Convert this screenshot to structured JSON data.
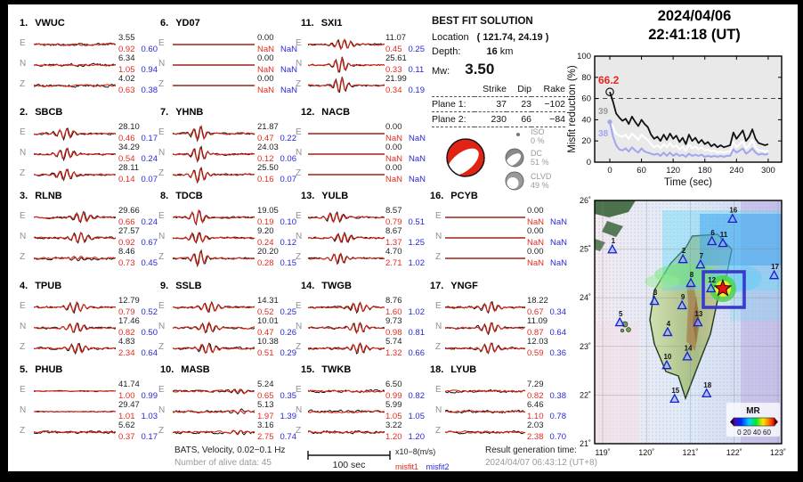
{
  "header": {
    "date": "2024/04/06",
    "time": "22:41:18  (UT)"
  },
  "solution": {
    "title": "BEST FIT SOLUTION",
    "location_label": "Location",
    "location_value": "( 121.74,  24.19 )",
    "depth_label": "Depth:",
    "depth_value": "16",
    "depth_unit": "km",
    "mw_label": "Mw:",
    "mw_value": "3.50",
    "col_headers": [
      "Strike",
      "Dip",
      "Rake"
    ],
    "planes": [
      {
        "label": "Plane 1:",
        "strike": "37",
        "dip": "23",
        "rake": "−102"
      },
      {
        "label": "Plane 2:",
        "strike": "230",
        "dip": "66",
        "rake": "−84"
      }
    ],
    "decomposition": [
      {
        "name": "ISO",
        "pct": "0 %"
      },
      {
        "name": "DC",
        "pct": "51 %"
      },
      {
        "name": "CLVD",
        "pct": "49 %"
      }
    ]
  },
  "stations": [
    {
      "num": "1.",
      "name": "VWUC",
      "traces": [
        {
          "c": "E",
          "amp": "3.55",
          "m1": "0.92",
          "m2": "0.60",
          "w": "n"
        },
        {
          "c": "N",
          "amp": "6.34",
          "m1": "1.05",
          "m2": "0.94",
          "w": "n"
        },
        {
          "c": "Z",
          "amp": "4.02",
          "m1": "0.63",
          "m2": "0.38",
          "w": "n"
        }
      ]
    },
    {
      "num": "2.",
      "name": "SBCB",
      "traces": [
        {
          "c": "E",
          "amp": "28.10",
          "m1": "0.46",
          "m2": "0.17",
          "w": "b",
          "p": 0.38
        },
        {
          "c": "N",
          "amp": "34.29",
          "m1": "0.54",
          "m2": "0.24",
          "w": "b",
          "p": 0.38
        },
        {
          "c": "Z",
          "amp": "28.11",
          "m1": "0.14",
          "m2": "0.07",
          "w": "b",
          "p": 0.38
        }
      ]
    },
    {
      "num": "3.",
      "name": "RLNB",
      "traces": [
        {
          "c": "E",
          "amp": "29.66",
          "m1": "0.66",
          "m2": "0.24",
          "w": "b",
          "p": 0.58
        },
        {
          "c": "N",
          "amp": "27.57",
          "m1": "0.92",
          "m2": "0.67",
          "w": "b",
          "p": 0.55
        },
        {
          "c": "Z",
          "amp": "8.46",
          "m1": "0.73",
          "m2": "0.45",
          "w": "n",
          "p": 0.55
        }
      ]
    },
    {
      "num": "4.",
      "name": "TPUB",
      "traces": [
        {
          "c": "E",
          "amp": "12.79",
          "m1": "0.79",
          "m2": "0.52",
          "w": "b",
          "p": 0.5
        },
        {
          "c": "N",
          "amp": "17.46",
          "m1": "0.82",
          "m2": "0.50",
          "w": "b",
          "p": 0.5
        },
        {
          "c": "Z",
          "amp": "4.83",
          "m1": "2.34",
          "m2": "0.64",
          "w": "b",
          "p": 0.52
        }
      ]
    },
    {
      "num": "5.",
      "name": "PHUB",
      "traces": [
        {
          "c": "E",
          "amp": "41.74",
          "m1": "1.00",
          "m2": "0.99",
          "w": "f"
        },
        {
          "c": "N",
          "amp": "29.47",
          "m1": "1.01",
          "m2": "1.03",
          "w": "f"
        },
        {
          "c": "Z",
          "amp": "5.62",
          "m1": "0.37",
          "m2": "0.17",
          "w": "n"
        }
      ]
    },
    {
      "num": "6.",
      "name": "YD07",
      "traces": [
        {
          "c": "E",
          "amp": "0.00",
          "m1": "NaN",
          "m2": "NaN",
          "w": "d"
        },
        {
          "c": "N",
          "amp": "0.00",
          "m1": "NaN",
          "m2": "NaN",
          "w": "d"
        },
        {
          "c": "Z",
          "amp": "0.00",
          "m1": "NaN",
          "m2": "NaN",
          "w": "d"
        }
      ]
    },
    {
      "num": "7.",
      "name": "YHNB",
      "traces": [
        {
          "c": "E",
          "amp": "21.87",
          "m1": "0.47",
          "m2": "0.22",
          "w": "B",
          "p": 0.32
        },
        {
          "c": "N",
          "amp": "24.03",
          "m1": "0.12",
          "m2": "0.06",
          "w": "B",
          "p": 0.32
        },
        {
          "c": "Z",
          "amp": "25.50",
          "m1": "0.16",
          "m2": "0.07",
          "w": "B",
          "p": 0.32
        }
      ]
    },
    {
      "num": "8.",
      "name": "TDCB",
      "traces": [
        {
          "c": "E",
          "amp": "19.05",
          "m1": "0.19",
          "m2": "0.10",
          "w": "B",
          "p": 0.3
        },
        {
          "c": "N",
          "amp": "9.20",
          "m1": "0.24",
          "m2": "0.12",
          "w": "b",
          "p": 0.3
        },
        {
          "c": "Z",
          "amp": "20.20",
          "m1": "0.28",
          "m2": "0.15",
          "w": "B",
          "p": 0.32
        }
      ]
    },
    {
      "num": "9.",
      "name": "SSLB",
      "traces": [
        {
          "c": "E",
          "amp": "14.31",
          "m1": "0.52",
          "m2": "0.25",
          "w": "b",
          "p": 0.45
        },
        {
          "c": "N",
          "amp": "10.01",
          "m1": "0.47",
          "m2": "0.26",
          "w": "b",
          "p": 0.42
        },
        {
          "c": "Z",
          "amp": "10.38",
          "m1": "0.51",
          "m2": "0.29",
          "w": "b",
          "p": 0.42
        }
      ]
    },
    {
      "num": "10.",
      "name": "MASB",
      "traces": [
        {
          "c": "E",
          "amp": "5.24",
          "m1": "0.65",
          "m2": "0.35",
          "w": "n",
          "p": 0.8
        },
        {
          "c": "N",
          "amp": "5.13",
          "m1": "1.97",
          "m2": "1.39",
          "w": "n",
          "p": 0.8
        },
        {
          "c": "Z",
          "amp": "3.16",
          "m1": "2.75",
          "m2": "0.74",
          "w": "n",
          "p": 0.8
        }
      ]
    },
    {
      "num": "11.",
      "name": "SXI1",
      "traces": [
        {
          "c": "E",
          "amp": "11.07",
          "m1": "0.45",
          "m2": "0.25",
          "w": "b",
          "p": 0.45
        },
        {
          "c": "N",
          "amp": "25.61",
          "m1": "0.33",
          "m2": "0.11",
          "w": "B",
          "p": 0.42
        },
        {
          "c": "Z",
          "amp": "21.99",
          "m1": "0.34",
          "m2": "0.19",
          "w": "B",
          "p": 0.42
        }
      ]
    },
    {
      "num": "12.",
      "name": "NACB",
      "traces": [
        {
          "c": "E",
          "amp": "0.00",
          "m1": "NaN",
          "m2": "NaN",
          "w": "d"
        },
        {
          "c": "N",
          "amp": "0.00",
          "m1": "NaN",
          "m2": "NaN",
          "w": "d"
        },
        {
          "c": "Z",
          "amp": "0.00",
          "m1": "NaN",
          "m2": "NaN",
          "w": "d"
        }
      ]
    },
    {
      "num": "13.",
      "name": "YULB",
      "traces": [
        {
          "c": "E",
          "amp": "8.57",
          "m1": "0.79",
          "m2": "0.51",
          "w": "b",
          "p": 0.35
        },
        {
          "c": "N",
          "amp": "8.67",
          "m1": "1.37",
          "m2": "1.25",
          "w": "b",
          "p": 0.45
        },
        {
          "c": "Z",
          "amp": "4.70",
          "m1": "2.71",
          "m2": "1.02",
          "w": "b",
          "p": 0.4
        }
      ]
    },
    {
      "num": "14.",
      "name": "TWGB",
      "traces": [
        {
          "c": "E",
          "amp": "8.76",
          "m1": "1.60",
          "m2": "1.02",
          "w": "b",
          "p": 0.65
        },
        {
          "c": "N",
          "amp": "9.73",
          "m1": "0.98",
          "m2": "0.81",
          "w": "b",
          "p": 0.65
        },
        {
          "c": "Z",
          "amp": "5.74",
          "m1": "1.32",
          "m2": "0.66",
          "w": "b",
          "p": 0.65
        }
      ]
    },
    {
      "num": "15.",
      "name": "TWKB",
      "traces": [
        {
          "c": "E",
          "amp": "6.50",
          "m1": "0.99",
          "m2": "0.82",
          "w": "n"
        },
        {
          "c": "N",
          "amp": "5.99",
          "m1": "1.05",
          "m2": "1.05",
          "w": "n"
        },
        {
          "c": "Z",
          "amp": "3.22",
          "m1": "1.20",
          "m2": "1.20",
          "w": "n"
        }
      ]
    },
    {
      "num": "16.",
      "name": "PCYB",
      "traces": [
        {
          "c": "E",
          "amp": "0.00",
          "m1": "NaN",
          "m2": "NaN",
          "w": "d"
        },
        {
          "c": "N",
          "amp": "0.00",
          "m1": "NaN",
          "m2": "NaN",
          "w": "d"
        },
        {
          "c": "Z",
          "amp": "0.00",
          "m1": "NaN",
          "m2": "NaN",
          "w": "d"
        }
      ]
    },
    {
      "num": "17.",
      "name": "YNGF",
      "traces": [
        {
          "c": "E",
          "amp": "18.22",
          "m1": "0.67",
          "m2": "0.34",
          "w": "b",
          "p": 0.55
        },
        {
          "c": "N",
          "amp": "11.09",
          "m1": "0.87",
          "m2": "0.64",
          "w": "b",
          "p": 0.55
        },
        {
          "c": "Z",
          "amp": "12.03",
          "m1": "0.59",
          "m2": "0.36",
          "w": "b",
          "p": 0.55
        }
      ]
    },
    {
      "num": "18.",
      "name": "LYUB",
      "traces": [
        {
          "c": "E",
          "amp": "7.29",
          "m1": "0.82",
          "m2": "0.38",
          "w": "n"
        },
        {
          "c": "N",
          "amp": "6.46",
          "m1": "1.10",
          "m2": "0.78",
          "w": "n"
        },
        {
          "c": "Z",
          "amp": "2.03",
          "m1": "2.38",
          "m2": "0.70",
          "w": "n"
        }
      ]
    }
  ],
  "footer": {
    "left1": "BATS, Velocity, 0.02−0.1 Hz",
    "left2": "Number of alive data: 45",
    "scale_label": "100 sec",
    "unit": "x10−8(m/s)",
    "misfit1": "misfit1",
    "misfit2": "misfit2",
    "right1": "Result generation time:",
    "right2": "2024/04/07 06:43:12 (UT+8)"
  },
  "chart_data": {
    "type": "line",
    "title": "",
    "xlabel": "Time (sec)",
    "ylabel": "Misfit reduction (%)",
    "xlim": [
      0,
      300
    ],
    "ylim": [
      0,
      100
    ],
    "xticks": [
      0,
      60,
      120,
      180,
      240,
      300
    ],
    "yticks": [
      0,
      20,
      40,
      60,
      80,
      100
    ],
    "grid": false,
    "dashed_line_y": 60,
    "x_step": 6,
    "annotations": [
      {
        "text": "66.2",
        "color": "#e8281e"
      },
      {
        "text": "39",
        "color": "#9a9a9a"
      },
      {
        "text": "38",
        "color": "#a0a6ee"
      }
    ],
    "series": [
      {
        "name": "best-depth misfit reduction",
        "color": "#111111",
        "values": [
          66.2,
          57,
          46,
          42,
          39,
          41,
          36,
          43,
          38,
          34,
          40,
          36,
          33,
          26,
          22,
          24,
          20,
          26,
          21,
          27,
          22,
          25,
          19,
          23,
          17,
          26,
          20,
          23,
          18,
          21,
          17,
          19,
          15,
          17,
          14,
          16,
          14,
          15,
          16,
          28,
          22,
          26,
          30,
          20,
          24,
          31,
          22,
          18,
          17,
          16,
          17
        ]
      },
      {
        "name": "secondary solution",
        "color": "#ffffff",
        "values": [
          39,
          33,
          27,
          25,
          24,
          26,
          22,
          27,
          24,
          21,
          26,
          23,
          21,
          17,
          14,
          16,
          13,
          17,
          14,
          18,
          14,
          16,
          12,
          15,
          11,
          17,
          13,
          15,
          12,
          14,
          11,
          12,
          10,
          11,
          9,
          10,
          9,
          10,
          10,
          19,
          14,
          17,
          20,
          13,
          16,
          21,
          14,
          11,
          11,
          10,
          11
        ]
      },
      {
        "name": "alternative solution",
        "color": "#a0a6ee",
        "values": [
          38,
          24,
          16,
          12,
          11,
          13,
          10,
          14,
          11,
          9,
          13,
          10,
          9,
          8,
          7,
          8,
          6,
          9,
          6,
          9,
          6,
          8,
          6,
          7,
          5,
          8,
          6,
          7,
          6,
          7,
          5,
          6,
          5,
          6,
          5,
          6,
          5,
          6,
          6,
          12,
          9,
          11,
          13,
          8,
          10,
          13,
          9,
          7,
          8,
          7,
          8
        ]
      }
    ]
  },
  "map": {
    "lon_ticks": [
      "119˚",
      "120˚",
      "121˚",
      "122˚",
      "123˚"
    ],
    "lat_ticks": [
      "26˚",
      "25˚",
      "24˚",
      "23˚",
      "22˚",
      "21˚"
    ],
    "epicenter": {
      "lon": 121.74,
      "lat": 24.19
    },
    "legend": {
      "title": "MR",
      "ticks": "0 20 40 60"
    },
    "stations": [
      {
        "id": "1",
        "lon": 119.22,
        "lat": 24.99
      },
      {
        "id": "2",
        "lon": 120.83,
        "lat": 24.79
      },
      {
        "id": "3",
        "lon": 120.18,
        "lat": 23.93
      },
      {
        "id": "4",
        "lon": 120.48,
        "lat": 23.29
      },
      {
        "id": "5",
        "lon": 119.39,
        "lat": 23.49
      },
      {
        "id": "6",
        "lon": 121.49,
        "lat": 25.16
      },
      {
        "id": "7",
        "lon": 121.23,
        "lat": 24.68
      },
      {
        "id": "8",
        "lon": 121.01,
        "lat": 24.3
      },
      {
        "id": "9",
        "lon": 120.81,
        "lat": 23.84
      },
      {
        "id": "10",
        "lon": 120.46,
        "lat": 22.61
      },
      {
        "id": "11",
        "lon": 121.74,
        "lat": 25.12
      },
      {
        "id": "12",
        "lon": 121.47,
        "lat": 24.19
      },
      {
        "id": "13",
        "lon": 121.17,
        "lat": 23.49
      },
      {
        "id": "14",
        "lon": 120.93,
        "lat": 22.79
      },
      {
        "id": "15",
        "lon": 120.64,
        "lat": 21.92
      },
      {
        "id": "16",
        "lon": 121.96,
        "lat": 25.62
      },
      {
        "id": "17",
        "lon": 122.91,
        "lat": 24.46
      },
      {
        "id": "18",
        "lon": 121.37,
        "lat": 22.03
      }
    ]
  },
  "colors": {
    "misfit1": "#e8281e",
    "misfit2": "#2828d8",
    "beachball": "#e02313",
    "dead_trace": "#a02018",
    "station_triangle": "#1122cc",
    "epicenter_box": "#3a3acc"
  }
}
